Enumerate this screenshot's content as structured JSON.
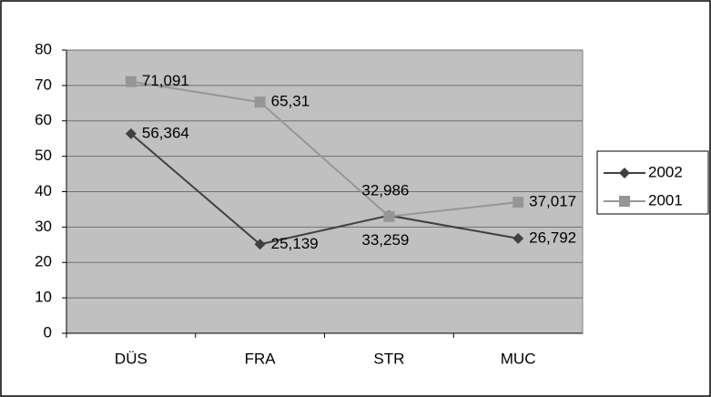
{
  "chart_data": {
    "type": "line",
    "categories": [
      "DÜS",
      "FRA",
      "STR",
      "MUC"
    ],
    "series": [
      {
        "name": "2002",
        "color": "#404040",
        "marker": "diamond",
        "values": [
          56.364,
          25.139,
          33.259,
          26.792
        ],
        "value_labels": [
          "56,364",
          "25,139",
          "33,259",
          "26,792"
        ]
      },
      {
        "name": "2001",
        "color": "#969696",
        "marker": "square",
        "values": [
          71.091,
          65.31,
          32.986,
          37.017
        ],
        "value_labels": [
          "71,091",
          "65,31",
          "32,986",
          "37,017"
        ]
      }
    ],
    "ylim": [
      0,
      80
    ],
    "yticks": [
      0,
      10,
      20,
      30,
      40,
      50,
      60,
      70,
      80
    ],
    "grid": true,
    "legend": "right"
  }
}
